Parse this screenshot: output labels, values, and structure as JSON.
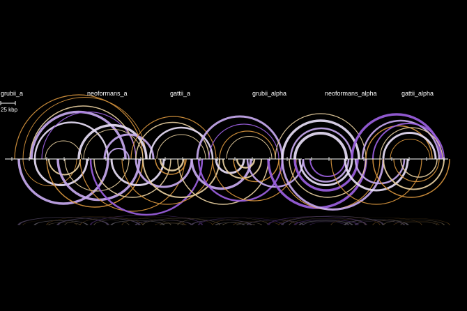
{
  "diagram": {
    "type": "arc-comparison",
    "genomes": [
      {
        "name": "grubii_a",
        "start": 0,
        "end": 110
      },
      {
        "name": "neoformans_a",
        "start": 110,
        "end": 220
      },
      {
        "name": "gattii_a",
        "start": 220,
        "end": 320
      },
      {
        "name": "grubii_alpha",
        "start": 320,
        "end": 430
      },
      {
        "name": "neoformans_alpha",
        "start": 430,
        "end": 545
      },
      {
        "name": "gattii_alpha",
        "start": 545,
        "end": 640
      }
    ],
    "scale_bar": {
      "label": "25 kbp",
      "kbp": 25
    },
    "colors": {
      "background": "#000000",
      "axis": "#ffffff",
      "purple_strong": "#9b5fe0",
      "purple_light": "#c6a8ee",
      "lavender": "#e6dcf5",
      "orange": "#d9963e",
      "tan": "#e8cfa0"
    },
    "arcs_above": [
      {
        "a": 16,
        "b": 200,
        "color": "orange",
        "w": 1.2
      },
      {
        "a": 28,
        "b": 205,
        "color": "orange",
        "w": 1.0
      },
      {
        "a": 38,
        "b": 190,
        "color": "tan",
        "w": 1.5
      },
      {
        "a": 40,
        "b": 175,
        "color": "purple_light",
        "w": 3.5
      },
      {
        "a": 45,
        "b": 150,
        "color": "lavender",
        "w": 2.5
      },
      {
        "a": 55,
        "b": 190,
        "color": "purple_strong",
        "w": 1.2
      },
      {
        "a": 60,
        "b": 112,
        "color": "tan",
        "w": 1.0
      },
      {
        "a": 108,
        "b": 205,
        "color": "lavender",
        "w": 3.5
      },
      {
        "a": 115,
        "b": 200,
        "color": "tan",
        "w": 1.0
      },
      {
        "a": 145,
        "b": 215,
        "color": "purple_light",
        "w": 3.0
      },
      {
        "a": 150,
        "b": 180,
        "color": "purple_light",
        "w": 2.0
      },
      {
        "a": 183,
        "b": 305,
        "color": "orange",
        "w": 1.2
      },
      {
        "a": 190,
        "b": 295,
        "color": "tan",
        "w": 1.5
      },
      {
        "a": 210,
        "b": 300,
        "color": "lavender",
        "w": 2.5
      },
      {
        "a": 220,
        "b": 290,
        "color": "tan",
        "w": 1.0
      },
      {
        "a": 278,
        "b": 400,
        "color": "purple_light",
        "w": 3.0
      },
      {
        "a": 295,
        "b": 395,
        "color": "purple_strong",
        "w": 1.2
      },
      {
        "a": 310,
        "b": 390,
        "color": "orange",
        "w": 1.2
      },
      {
        "a": 320,
        "b": 385,
        "color": "tan",
        "w": 1.0
      },
      {
        "a": 390,
        "b": 520,
        "color": "tan",
        "w": 1.2
      },
      {
        "a": 400,
        "b": 510,
        "color": "lavender",
        "w": 3.5
      },
      {
        "a": 412,
        "b": 500,
        "color": "purple_light",
        "w": 2.5
      },
      {
        "a": 418,
        "b": 492,
        "color": "lavender",
        "w": 4.0
      },
      {
        "a": 500,
        "b": 628,
        "color": "purple_strong",
        "w": 3.5
      },
      {
        "a": 515,
        "b": 625,
        "color": "purple_light",
        "w": 2.5
      },
      {
        "a": 520,
        "b": 615,
        "color": "orange",
        "w": 1.5
      },
      {
        "a": 530,
        "b": 632,
        "color": "purple_strong",
        "w": 2.0
      },
      {
        "a": 540,
        "b": 630,
        "color": "tan",
        "w": 1.2
      },
      {
        "a": 545,
        "b": 620,
        "color": "lavender",
        "w": 3.0
      },
      {
        "a": 555,
        "b": 612,
        "color": "orange",
        "w": 1.0
      }
    ],
    "arcs_below": [
      {
        "a": 22,
        "b": 150,
        "color": "purple_light",
        "w": 3.5
      },
      {
        "a": 28,
        "b": 105,
        "color": "orange",
        "w": 1.0
      },
      {
        "a": 45,
        "b": 120,
        "color": "lavender",
        "w": 3.0
      },
      {
        "a": 62,
        "b": 200,
        "color": "orange",
        "w": 1.5
      },
      {
        "a": 65,
        "b": 110,
        "color": "tan",
        "w": 2.0
      },
      {
        "a": 78,
        "b": 195,
        "color": "purple_light",
        "w": 3.5
      },
      {
        "a": 88,
        "b": 180,
        "color": "tan",
        "w": 1.2
      },
      {
        "a": 110,
        "b": 260,
        "color": "orange",
        "w": 1.2
      },
      {
        "a": 125,
        "b": 285,
        "color": "purple_strong",
        "w": 2.5
      },
      {
        "a": 130,
        "b": 240,
        "color": "tan",
        "w": 1.5
      },
      {
        "a": 155,
        "b": 230,
        "color": "lavender",
        "w": 3.0
      },
      {
        "a": 170,
        "b": 300,
        "color": "orange",
        "w": 1.2
      },
      {
        "a": 190,
        "b": 270,
        "color": "purple_light",
        "w": 3.0
      },
      {
        "a": 200,
        "b": 310,
        "color": "tan",
        "w": 2.0
      },
      {
        "a": 218,
        "b": 262,
        "color": "orange",
        "w": 1.5
      },
      {
        "a": 225,
        "b": 258,
        "color": "tan",
        "w": 2.5
      },
      {
        "a": 250,
        "b": 380,
        "color": "tan",
        "w": 1.5
      },
      {
        "a": 270,
        "b": 355,
        "color": "purple_light",
        "w": 3.5
      },
      {
        "a": 280,
        "b": 400,
        "color": "purple_strong",
        "w": 2.5
      },
      {
        "a": 300,
        "b": 420,
        "color": "orange",
        "w": 1.2
      },
      {
        "a": 305,
        "b": 345,
        "color": "lavender",
        "w": 3.0
      },
      {
        "a": 315,
        "b": 370,
        "color": "tan",
        "w": 2.0
      },
      {
        "a": 330,
        "b": 395,
        "color": "orange",
        "w": 1.5
      },
      {
        "a": 335,
        "b": 360,
        "color": "tan",
        "w": 2.5
      },
      {
        "a": 350,
        "b": 430,
        "color": "purple_light",
        "w": 2.5
      },
      {
        "a": 380,
        "b": 520,
        "color": "purple_strong",
        "w": 3.5
      },
      {
        "a": 395,
        "b": 540,
        "color": "orange",
        "w": 1.2
      },
      {
        "a": 400,
        "b": 545,
        "color": "purple_light",
        "w": 3.0
      },
      {
        "a": 410,
        "b": 520,
        "color": "tan",
        "w": 1.5
      },
      {
        "a": 418,
        "b": 508,
        "color": "purple_strong",
        "w": 3.5
      },
      {
        "a": 425,
        "b": 500,
        "color": "lavender",
        "w": 3.0
      },
      {
        "a": 430,
        "b": 495,
        "color": "purple_light",
        "w": 2.5
      },
      {
        "a": 440,
        "b": 490,
        "color": "purple_strong",
        "w": 2.0
      },
      {
        "a": 470,
        "b": 600,
        "color": "orange",
        "w": 1.2
      },
      {
        "a": 490,
        "b": 580,
        "color": "lavender",
        "w": 3.0
      },
      {
        "a": 505,
        "b": 575,
        "color": "purple_light",
        "w": 2.5
      },
      {
        "a": 530,
        "b": 640,
        "color": "orange",
        "w": 1.5
      },
      {
        "a": 545,
        "b": 632,
        "color": "tan",
        "w": 2.0
      },
      {
        "a": 560,
        "b": 625,
        "color": "orange",
        "w": 1.2
      },
      {
        "a": 570,
        "b": 622,
        "color": "tan",
        "w": 1.5
      }
    ]
  }
}
